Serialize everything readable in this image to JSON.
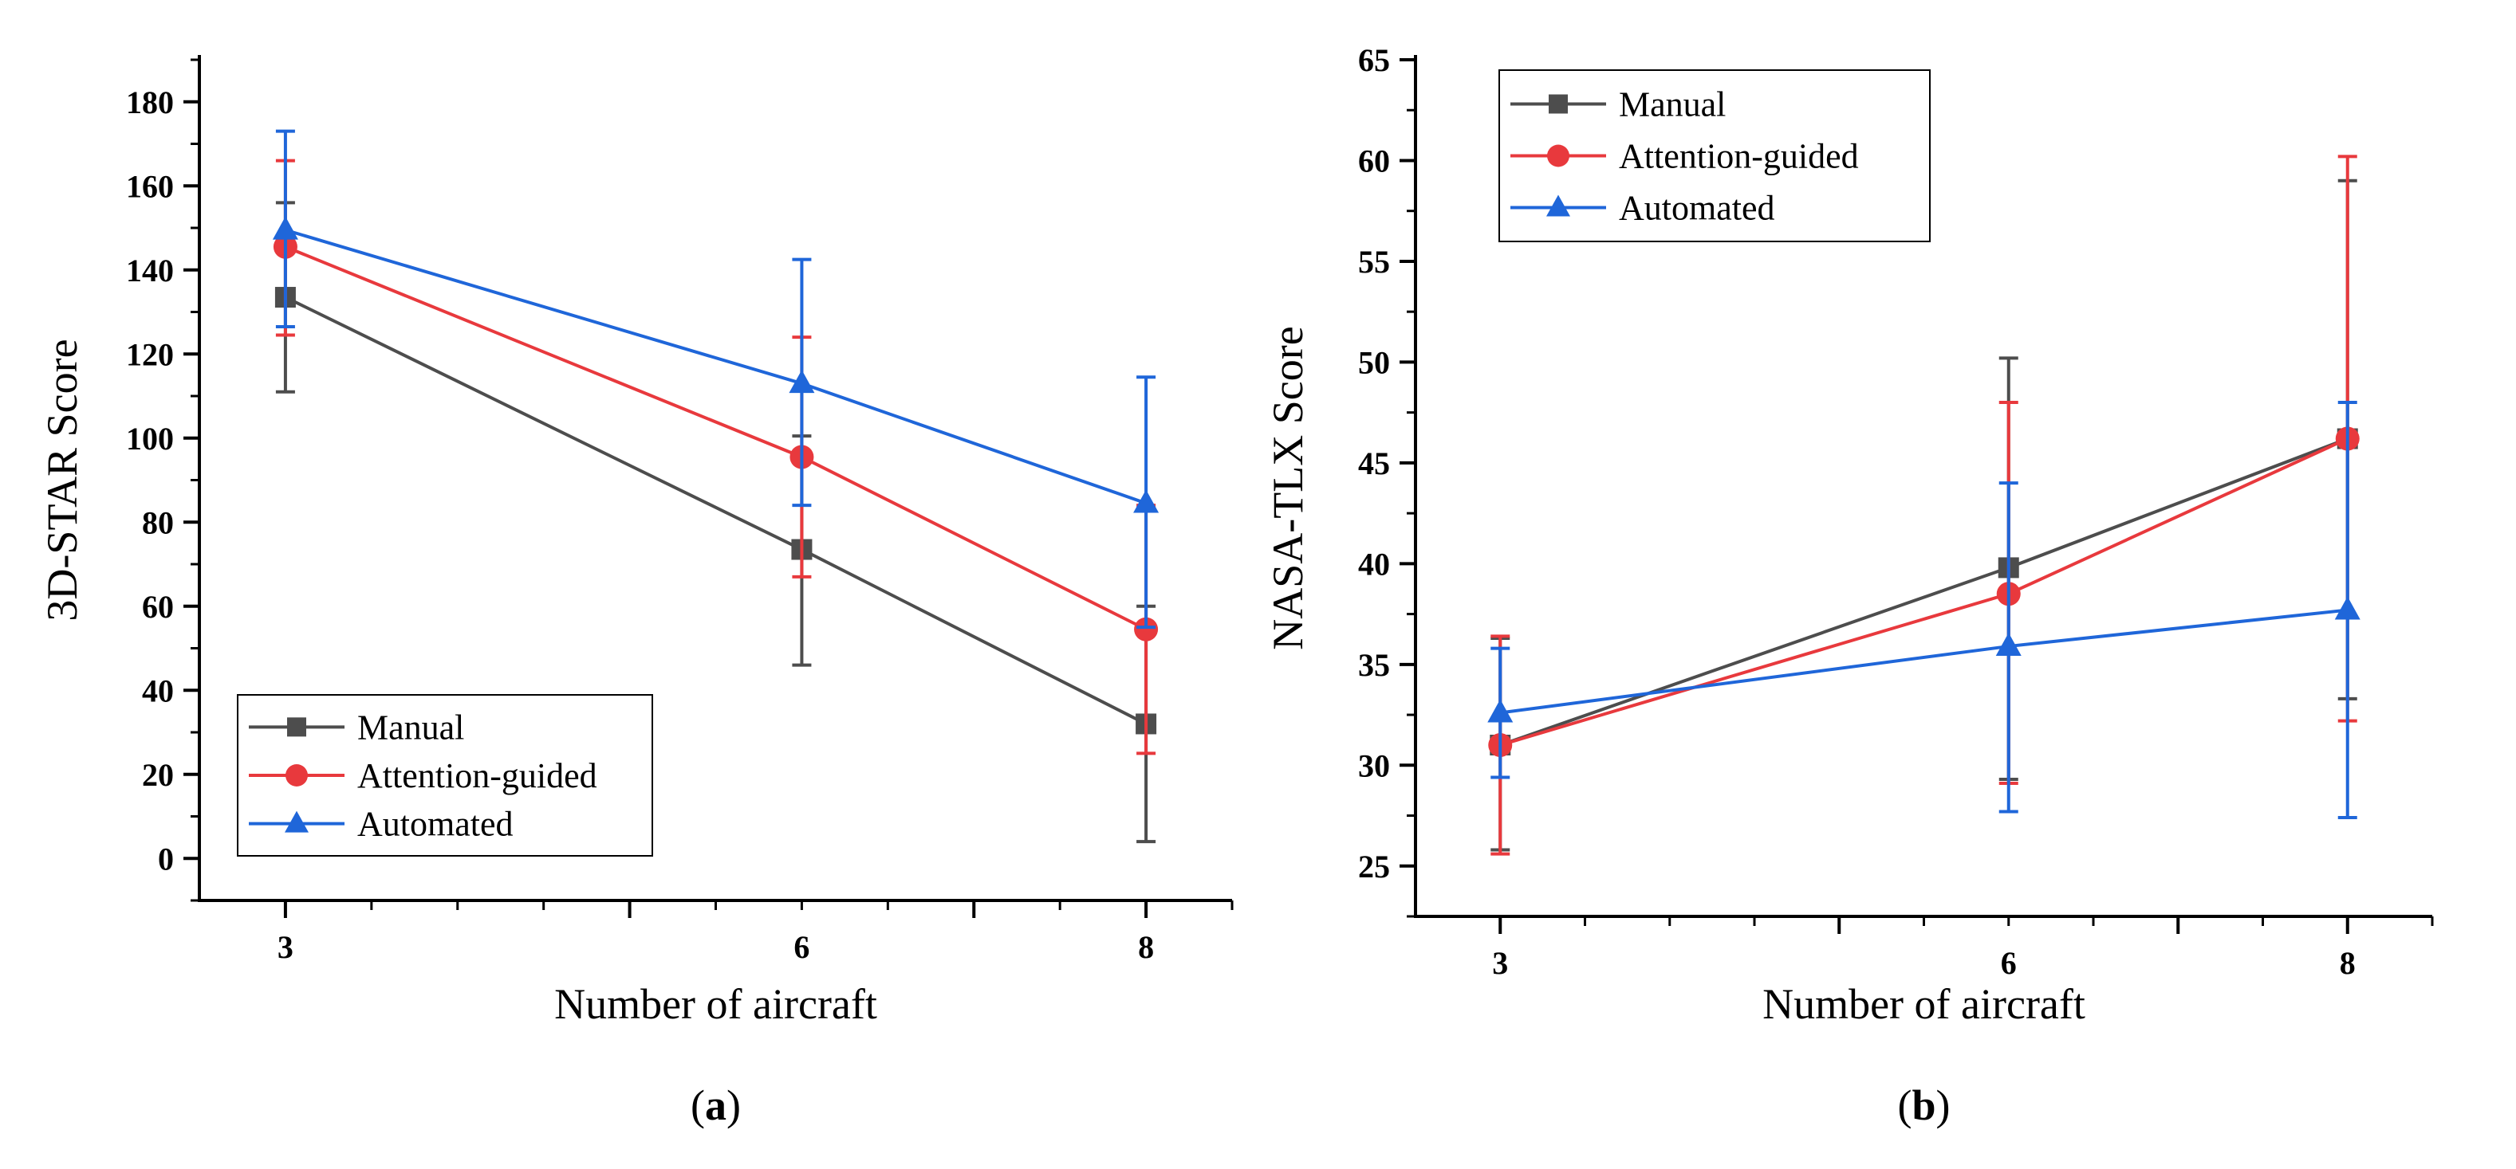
{
  "chart_data": [
    {
      "id": "a",
      "type": "line",
      "panel_label": "a",
      "xlabel": "Number of aircraft",
      "ylabel": "3D-STAR Score",
      "x": [
        3,
        6,
        8
      ],
      "xticks": [
        "3",
        "6",
        "8"
      ],
      "xlim": [
        2.5,
        8.5
      ],
      "ylim": [
        -10,
        190
      ],
      "yticks": [
        0,
        20,
        40,
        60,
        80,
        100,
        120,
        140,
        160,
        180
      ],
      "ytick_labels": [
        "0",
        "20",
        "40",
        "60",
        "80",
        "100",
        "120",
        "140",
        "160",
        "180"
      ],
      "legend_position": "bottom-left",
      "series": [
        {
          "name": "Manual",
          "color": "#4d4d4d",
          "marker": "square",
          "values": [
            133.5,
            73.5,
            32
          ],
          "err_low": [
            111,
            46,
            4
          ],
          "err_high": [
            156,
            100.5,
            60
          ]
        },
        {
          "name": "Attention-guided",
          "color": "#e8393d",
          "marker": "circle",
          "values": [
            145.5,
            95.5,
            54.5
          ],
          "err_low": [
            124.5,
            67,
            25
          ],
          "err_high": [
            166,
            124,
            84
          ]
        },
        {
          "name": "Automated",
          "color": "#1f66d9",
          "marker": "triangle",
          "values": [
            149.5,
            113,
            84.5
          ],
          "err_low": [
            126.5,
            84,
            55
          ],
          "err_high": [
            173,
            142.5,
            114.5
          ]
        }
      ]
    },
    {
      "id": "b",
      "type": "line",
      "panel_label": "b",
      "xlabel": "Number of aircraft",
      "ylabel": "NASA-TLX Score",
      "x": [
        3,
        6,
        8
      ],
      "xticks": [
        "3",
        "6",
        "8"
      ],
      "xlim": [
        2.5,
        8.5
      ],
      "ylim": [
        22.5,
        65
      ],
      "yticks": [
        25,
        30,
        35,
        40,
        45,
        50,
        55,
        60,
        65
      ],
      "ytick_labels": [
        "25",
        "30",
        "35",
        "40",
        "45",
        "50",
        "55",
        "60",
        "65"
      ],
      "legend_position": "top-left",
      "series": [
        {
          "name": "Manual",
          "color": "#4d4d4d",
          "marker": "square",
          "values": [
            31,
            39.8,
            46.2
          ],
          "err_low": [
            25.8,
            29.3,
            33.3
          ],
          "err_high": [
            36.3,
            50.2,
            59
          ]
        },
        {
          "name": "Attention-guided",
          "color": "#e8393d",
          "marker": "circle",
          "values": [
            31,
            38.5,
            46.2
          ],
          "err_low": [
            25.6,
            29.1,
            32.2
          ],
          "err_high": [
            36.4,
            48,
            60.2
          ]
        },
        {
          "name": "Automated",
          "color": "#1f66d9",
          "marker": "triangle",
          "values": [
            32.6,
            35.9,
            37.7
          ],
          "err_low": [
            29.4,
            27.7,
            27.4
          ],
          "err_high": [
            35.8,
            44,
            48
          ]
        }
      ]
    }
  ]
}
